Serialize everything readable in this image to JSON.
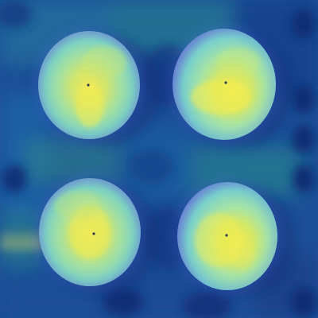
{
  "image": {
    "kind": "heatmap-overlay",
    "description_visible_text": "",
    "palette": {
      "background_deep": "#0b2a73",
      "background_mid": "#1f5fa3",
      "background_teal": "#2a8f8f",
      "disc_edge": "#6f86d3",
      "disc_teal": "#68d3bd",
      "disc_core": "#f0ea5a"
    }
  },
  "objects": [
    {
      "id": "disc-top-left",
      "hot_spot_intensity": 0.86
    },
    {
      "id": "disc-top-right",
      "hot_spot_intensity": 0.92
    },
    {
      "id": "disc-bottom-left",
      "hot_spot_intensity": 0.88
    },
    {
      "id": "disc-bottom-right",
      "hot_spot_intensity": 0.84
    }
  ]
}
